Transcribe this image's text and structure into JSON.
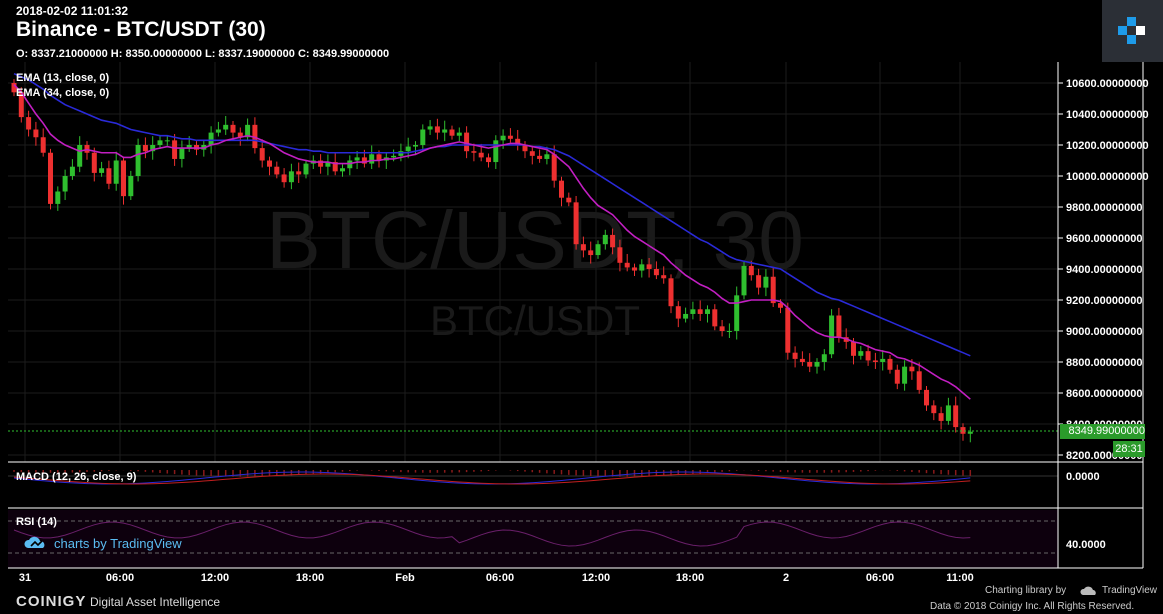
{
  "header": {
    "timestamp": "2018-02-02 11:01:32",
    "title": "Binance - BTC/USDT (30)",
    "ohlc": "O: 8337.21000000 H: 8350.00000000 L: 8337.19000000 C: 8349.99000000"
  },
  "watermark": {
    "big": "BTC/USDT, 30",
    "small": "BTC/USDT"
  },
  "indicators": {
    "ema13_label": "EMA (13, close, 0)",
    "ema34_label": "EMA (34, close, 0)",
    "macd_label": "MACD (12, 26, close, 9)",
    "rsi_label": "RSI (14)",
    "macd_axis": "0.0000",
    "rsi_axis": "40.0000"
  },
  "tags": {
    "last_price": "8349.99000000",
    "countdown": "28:31"
  },
  "branding": {
    "tv_badge": "charts by TradingView",
    "footer_brand": "COINIGY",
    "footer_sub": "Digital Asset Intelligence",
    "footer_lib": "Charting library by",
    "footer_tv": "TradingView",
    "footer_copy": "Data © 2018 Coinigy Inc. All Rights Reserved."
  },
  "colors": {
    "up": "#2fbf2f",
    "down": "#ee3030",
    "ema13": "#c21fc2",
    "ema34": "#2a2ad8",
    "grid": "#1c1c1c"
  },
  "chart_data": {
    "type": "candlestick",
    "y_axis_ticks": [
      "10600.00000000",
      "10400.00000000",
      "10200.00000000",
      "10000.00000000",
      "9800.00000000",
      "9600.00000000",
      "9400.00000000",
      "9200.00000000",
      "9000.00000000",
      "8800.00000000",
      "8600.00000000",
      "8400.00000000",
      "8200.00000000"
    ],
    "ylim": [
      8160,
      10700
    ],
    "x_axis_ticks": [
      "31",
      "06:00",
      "12:00",
      "18:00",
      "Feb",
      "06:00",
      "12:00",
      "18:00",
      "2",
      "06:00",
      "11:00"
    ],
    "closes": [
      10540,
      10380,
      10300,
      10250,
      10150,
      9820,
      9900,
      10000,
      10060,
      10200,
      10150,
      10020,
      10050,
      9950,
      10100,
      9870,
      10000,
      10200,
      10160,
      10200,
      10230,
      10230,
      10110,
      10180,
      10200,
      10170,
      10200,
      10280,
      10300,
      10330,
      10280,
      10250,
      10330,
      10180,
      10100,
      10060,
      10010,
      9960,
      10030,
      10010,
      10080,
      10100,
      10060,
      10090,
      10030,
      10050,
      10100,
      10120,
      10080,
      10140,
      10100,
      10120,
      10130,
      10160,
      10190,
      10200,
      10300,
      10320,
      10280,
      10300,
      10260,
      10280,
      10160,
      10150,
      10120,
      10090,
      10230,
      10260,
      10240,
      10200,
      10160,
      10130,
      10110,
      10140,
      9970,
      9860,
      9830,
      9560,
      9520,
      9490,
      9560,
      9620,
      9540,
      9440,
      9410,
      9390,
      9430,
      9400,
      9360,
      9340,
      9160,
      9080,
      9110,
      9140,
      9110,
      9140,
      9030,
      9000,
      9000,
      9230,
      9420,
      9360,
      9280,
      9350,
      9180,
      9150,
      8860,
      8820,
      8800,
      8770,
      8800,
      8850,
      9100,
      8960,
      8930,
      8840,
      8870,
      8810,
      8800,
      8820,
      8750,
      8660,
      8770,
      8740,
      8620,
      8520,
      8470,
      8420,
      8520,
      8380,
      8337,
      8349.99
    ],
    "ema13": [
      10590,
      10540,
      10470,
      10400,
      10340,
      10270,
      10230,
      10200,
      10180,
      10160,
      10170,
      10160,
      10150,
      10150,
      10150,
      10120,
      10120,
      10140,
      10150,
      10170,
      10180,
      10190,
      10180,
      10180,
      10180,
      10180,
      10180,
      10200,
      10210,
      10230,
      10240,
      10250,
      10260,
      10250,
      10230,
      10210,
      10180,
      10150,
      10130,
      10110,
      10100,
      10090,
      10090,
      10090,
      10080,
      10080,
      10080,
      10090,
      10090,
      10100,
      10100,
      10110,
      10110,
      10120,
      10130,
      10140,
      10160,
      10180,
      10190,
      10200,
      10210,
      10220,
      10210,
      10200,
      10190,
      10180,
      10190,
      10200,
      10210,
      10210,
      10200,
      10190,
      10180,
      10170,
      10140,
      10100,
      10060,
      9990,
      9920,
      9860,
      9810,
      9780,
      9750,
      9700,
      9650,
      9610,
      9580,
      9550,
      9520,
      9490,
      9440,
      9400,
      9360,
      9330,
      9300,
      9280,
      9250,
      9210,
      9180,
      9180,
      9190,
      9200,
      9200,
      9200,
      9200,
      9190,
      9150,
      9100,
      9060,
      9020,
      8990,
      8970,
      8960,
      8960,
      8950,
      8930,
      8920,
      8900,
      8880,
      8870,
      8860,
      8830,
      8820,
      8800,
      8780,
      8750,
      8720,
      8690,
      8670,
      8640,
      8600,
      8560
    ],
    "ema34": [
      10660,
      10640,
      10620,
      10590,
      10560,
      10520,
      10490,
      10460,
      10440,
      10420,
      10400,
      10380,
      10360,
      10350,
      10340,
      10320,
      10300,
      10290,
      10280,
      10270,
      10260,
      10260,
      10250,
      10240,
      10240,
      10230,
      10230,
      10230,
      10230,
      10230,
      10230,
      10230,
      10230,
      10230,
      10220,
      10210,
      10200,
      10190,
      10180,
      10170,
      10170,
      10160,
      10160,
      10150,
      10150,
      10150,
      10150,
      10150,
      10150,
      10150,
      10150,
      10150,
      10150,
      10150,
      10150,
      10160,
      10170,
      10180,
      10190,
      10190,
      10200,
      10200,
      10200,
      10200,
      10200,
      10200,
      10200,
      10200,
      10200,
      10200,
      10200,
      10190,
      10190,
      10180,
      10170,
      10150,
      10130,
      10100,
      10070,
      10040,
      10010,
      9980,
      9950,
      9920,
      9890,
      9860,
      9830,
      9800,
      9770,
      9740,
      9710,
      9680,
      9650,
      9620,
      9590,
      9570,
      9540,
      9510,
      9480,
      9460,
      9450,
      9440,
      9430,
      9420,
      9410,
      9400,
      9370,
      9340,
      9310,
      9280,
      9250,
      9230,
      9210,
      9200,
      9180,
      9160,
      9140,
      9120,
      9100,
      9080,
      9060,
      9040,
      9020,
      9000,
      8980,
      8960,
      8940,
      8920,
      8900,
      8880,
      8860,
      8840
    ]
  }
}
